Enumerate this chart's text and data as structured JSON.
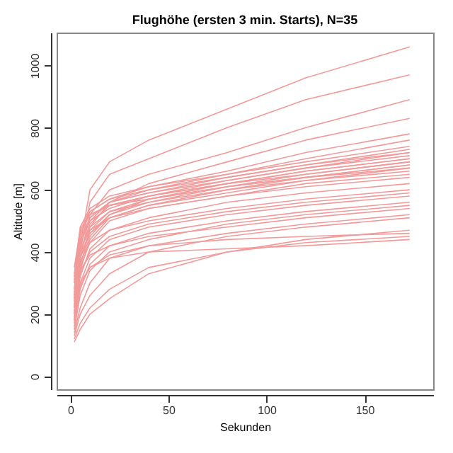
{
  "chart_data": {
    "type": "line",
    "title": "Flughöhe (ersten 3 min. Starts), N=35",
    "xlabel": "Sekunden",
    "ylabel": "Altitude [m]",
    "xlim": [
      -7,
      185
    ],
    "ylim": [
      -42,
      1106
    ],
    "xticks": [
      0,
      50,
      100,
      150
    ],
    "yticks": [
      0,
      200,
      400,
      600,
      800,
      1000
    ],
    "grid": false,
    "legend": false,
    "marker": "none",
    "line_style": "solid",
    "x": [
      2,
      5,
      10,
      20,
      40,
      80,
      120,
      173
    ],
    "series": [
      {
        "color": "#f29a9a",
        "values": [
          250,
          420,
          600,
          690,
          760,
          860,
          960,
          1060
        ]
      },
      {
        "color": "#f29a9a",
        "values": [
          220,
          400,
          560,
          650,
          700,
          800,
          890,
          970
        ]
      },
      {
        "color": "#f29a9a",
        "values": [
          200,
          380,
          520,
          600,
          650,
          720,
          800,
          890
        ]
      },
      {
        "color": "#f29a9a",
        "values": [
          180,
          350,
          480,
          560,
          620,
          690,
          760,
          830
        ]
      },
      {
        "color": "#f29a9a",
        "values": [
          300,
          450,
          530,
          570,
          610,
          660,
          720,
          780
        ]
      },
      {
        "color": "#f29a9a",
        "values": [
          280,
          430,
          500,
          560,
          600,
          650,
          700,
          760
        ]
      },
      {
        "color": "#f29a9a",
        "values": [
          320,
          480,
          540,
          580,
          610,
          650,
          690,
          740
        ]
      },
      {
        "color": "#f29a9a",
        "values": [
          260,
          420,
          510,
          560,
          590,
          640,
          680,
          730
        ]
      },
      {
        "color": "#f29a9a",
        "values": [
          240,
          400,
          490,
          550,
          580,
          630,
          670,
          720
        ]
      },
      {
        "color": "#f29a9a",
        "values": [
          350,
          470,
          530,
          570,
          600,
          640,
          680,
          720
        ]
      },
      {
        "color": "#f29a9a",
        "values": [
          300,
          440,
          510,
          560,
          590,
          630,
          670,
          710
        ]
      },
      {
        "color": "#f29a9a",
        "values": [
          220,
          380,
          470,
          530,
          570,
          620,
          660,
          700
        ]
      },
      {
        "color": "#f29a9a",
        "values": [
          280,
          430,
          500,
          540,
          580,
          620,
          660,
          700
        ]
      },
      {
        "color": "#f29a9a",
        "values": [
          200,
          360,
          450,
          520,
          570,
          610,
          650,
          690
        ]
      },
      {
        "color": "#f29a9a",
        "values": [
          310,
          460,
          520,
          550,
          580,
          620,
          650,
          690
        ]
      },
      {
        "color": "#f29a9a",
        "values": [
          260,
          400,
          480,
          530,
          560,
          610,
          640,
          680
        ]
      },
      {
        "color": "#f29a9a",
        "values": [
          230,
          380,
          460,
          520,
          560,
          600,
          640,
          680
        ]
      },
      {
        "color": "#f29a9a",
        "values": [
          190,
          340,
          440,
          510,
          550,
          600,
          630,
          670
        ]
      },
      {
        "color": "#f29a9a",
        "values": [
          330,
          470,
          520,
          550,
          570,
          610,
          640,
          670
        ]
      },
      {
        "color": "#f29a9a",
        "values": [
          250,
          390,
          460,
          510,
          550,
          590,
          630,
          660
        ]
      },
      {
        "color": "#f29a9a",
        "values": [
          210,
          350,
          430,
          500,
          540,
          580,
          620,
          650
        ]
      },
      {
        "color": "#f29a9a",
        "values": [
          270,
          410,
          470,
          510,
          540,
          580,
          610,
          640
        ]
      },
      {
        "color": "#f29a9a",
        "values": [
          180,
          320,
          410,
          470,
          510,
          560,
          590,
          620
        ]
      },
      {
        "color": "#f29a9a",
        "values": [
          240,
          370,
          430,
          470,
          500,
          540,
          570,
          600
        ]
      },
      {
        "color": "#f29a9a",
        "values": [
          200,
          330,
          400,
          450,
          490,
          530,
          560,
          590
        ]
      },
      {
        "color": "#f29a9a",
        "values": [
          170,
          300,
          380,
          440,
          480,
          520,
          550,
          580
        ]
      },
      {
        "color": "#f29a9a",
        "values": [
          160,
          280,
          360,
          420,
          460,
          500,
          530,
          560
        ]
      },
      {
        "color": "#f29a9a",
        "values": [
          150,
          260,
          340,
          400,
          440,
          490,
          520,
          550
        ]
      },
      {
        "color": "#f29a9a",
        "values": [
          220,
          340,
          390,
          420,
          450,
          480,
          510,
          540
        ]
      },
      {
        "color": "#f29a9a",
        "values": [
          180,
          290,
          350,
          390,
          420,
          460,
          490,
          520
        ]
      },
      {
        "color": "#f29a9a",
        "values": [
          130,
          200,
          260,
          330,
          400,
          450,
          480,
          510
        ]
      },
      {
        "color": "#f29a9a",
        "values": [
          110,
          150,
          200,
          250,
          330,
          400,
          440,
          470
        ]
      },
      {
        "color": "#f29a9a",
        "values": [
          120,
          170,
          220,
          280,
          350,
          400,
          430,
          450
        ]
      },
      {
        "color": "#f29a9a",
        "values": [
          140,
          220,
          300,
          380,
          420,
          440,
          450,
          460
        ]
      },
      {
        "color": "#f29a9a",
        "values": [
          200,
          300,
          350,
          380,
          400,
          410,
          420,
          440
        ]
      }
    ]
  }
}
